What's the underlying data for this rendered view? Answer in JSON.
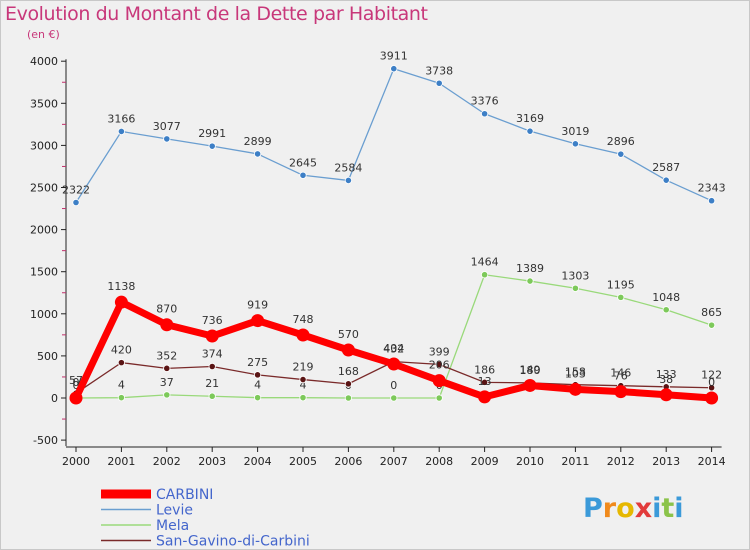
{
  "title": "Evolution du Montant de la Dette par Habitant",
  "subtitle": "(en €)",
  "brand": {
    "letters": [
      "P",
      "r",
      "o",
      "x",
      "i",
      "t",
      "i"
    ],
    "colors": [
      "#3b9ad9",
      "#f08a1c",
      "#e6b800",
      "#e23b3b",
      "#3b9ad9",
      "#8bc34a",
      "#3b9ad9"
    ]
  },
  "chart_data": {
    "type": "line",
    "x": [
      "2000",
      "2001",
      "2002",
      "2003",
      "2004",
      "2005",
      "2006",
      "2007",
      "2008",
      "2009",
      "2010",
      "2011",
      "2012",
      "2013",
      "2014"
    ],
    "ylim": [
      -500,
      4000
    ],
    "yticks": [
      "-500",
      "0",
      "500",
      "1000",
      "1500",
      "2000",
      "2500",
      "3000",
      "3500",
      "4000"
    ],
    "grid": false,
    "legend_position": "bottom-left",
    "series": [
      {
        "name": "CARBINI",
        "color": "#ff0000",
        "marker": "#ff0000",
        "width": 7,
        "r": 6.5,
        "values": [
          0,
          1138,
          870,
          736,
          919,
          748,
          570,
          404,
          206,
          13,
          149,
          103,
          76,
          38,
          0
        ],
        "labels": [
          "0",
          "1138",
          "870",
          "736",
          "919",
          "748",
          "570",
          "404",
          "206",
          "13",
          "149",
          "103",
          "76",
          "38",
          "0"
        ]
      },
      {
        "name": "Levie",
        "color": "#6a9ed0",
        "marker": "#3d7fc6",
        "width": 1.3,
        "r": 3.2,
        "values": [
          2322,
          3166,
          3077,
          2991,
          2899,
          2645,
          2584,
          3911,
          3738,
          3376,
          3169,
          3019,
          2896,
          2587,
          2343
        ],
        "labels": [
          "2322",
          "3166",
          "3077",
          "2991",
          "2899",
          "2645",
          "2584",
          "3911",
          "3738",
          "3376",
          "3169",
          "3019",
          "2896",
          "2587",
          "2343"
        ]
      },
      {
        "name": "Mela",
        "color": "#99d97a",
        "marker": "#7dc95a",
        "width": 1.3,
        "r": 3.2,
        "values": [
          0,
          4,
          37,
          21,
          4,
          4,
          0,
          0,
          0,
          1464,
          1389,
          1303,
          1195,
          1048,
          865
        ],
        "labels": [
          "0",
          "4",
          "37",
          "21",
          "4",
          "4",
          "0",
          "0",
          "0",
          "1464",
          "1389",
          "1303",
          "1195",
          "1048",
          "865"
        ]
      },
      {
        "name": "San-Gavino-di-Carbini",
        "color": "#7a2a2a",
        "marker": "#5a1414",
        "width": 1.3,
        "r": 3.2,
        "values": [
          57,
          420,
          352,
          374,
          275,
          219,
          168,
          432,
          399,
          186,
          180,
          158,
          146,
          133,
          122
        ],
        "labels": [
          "57",
          "420",
          "352",
          "374",
          "275",
          "219",
          "168",
          "432",
          "399",
          "186",
          "180",
          "158",
          "146",
          "133",
          "122"
        ]
      }
    ]
  }
}
